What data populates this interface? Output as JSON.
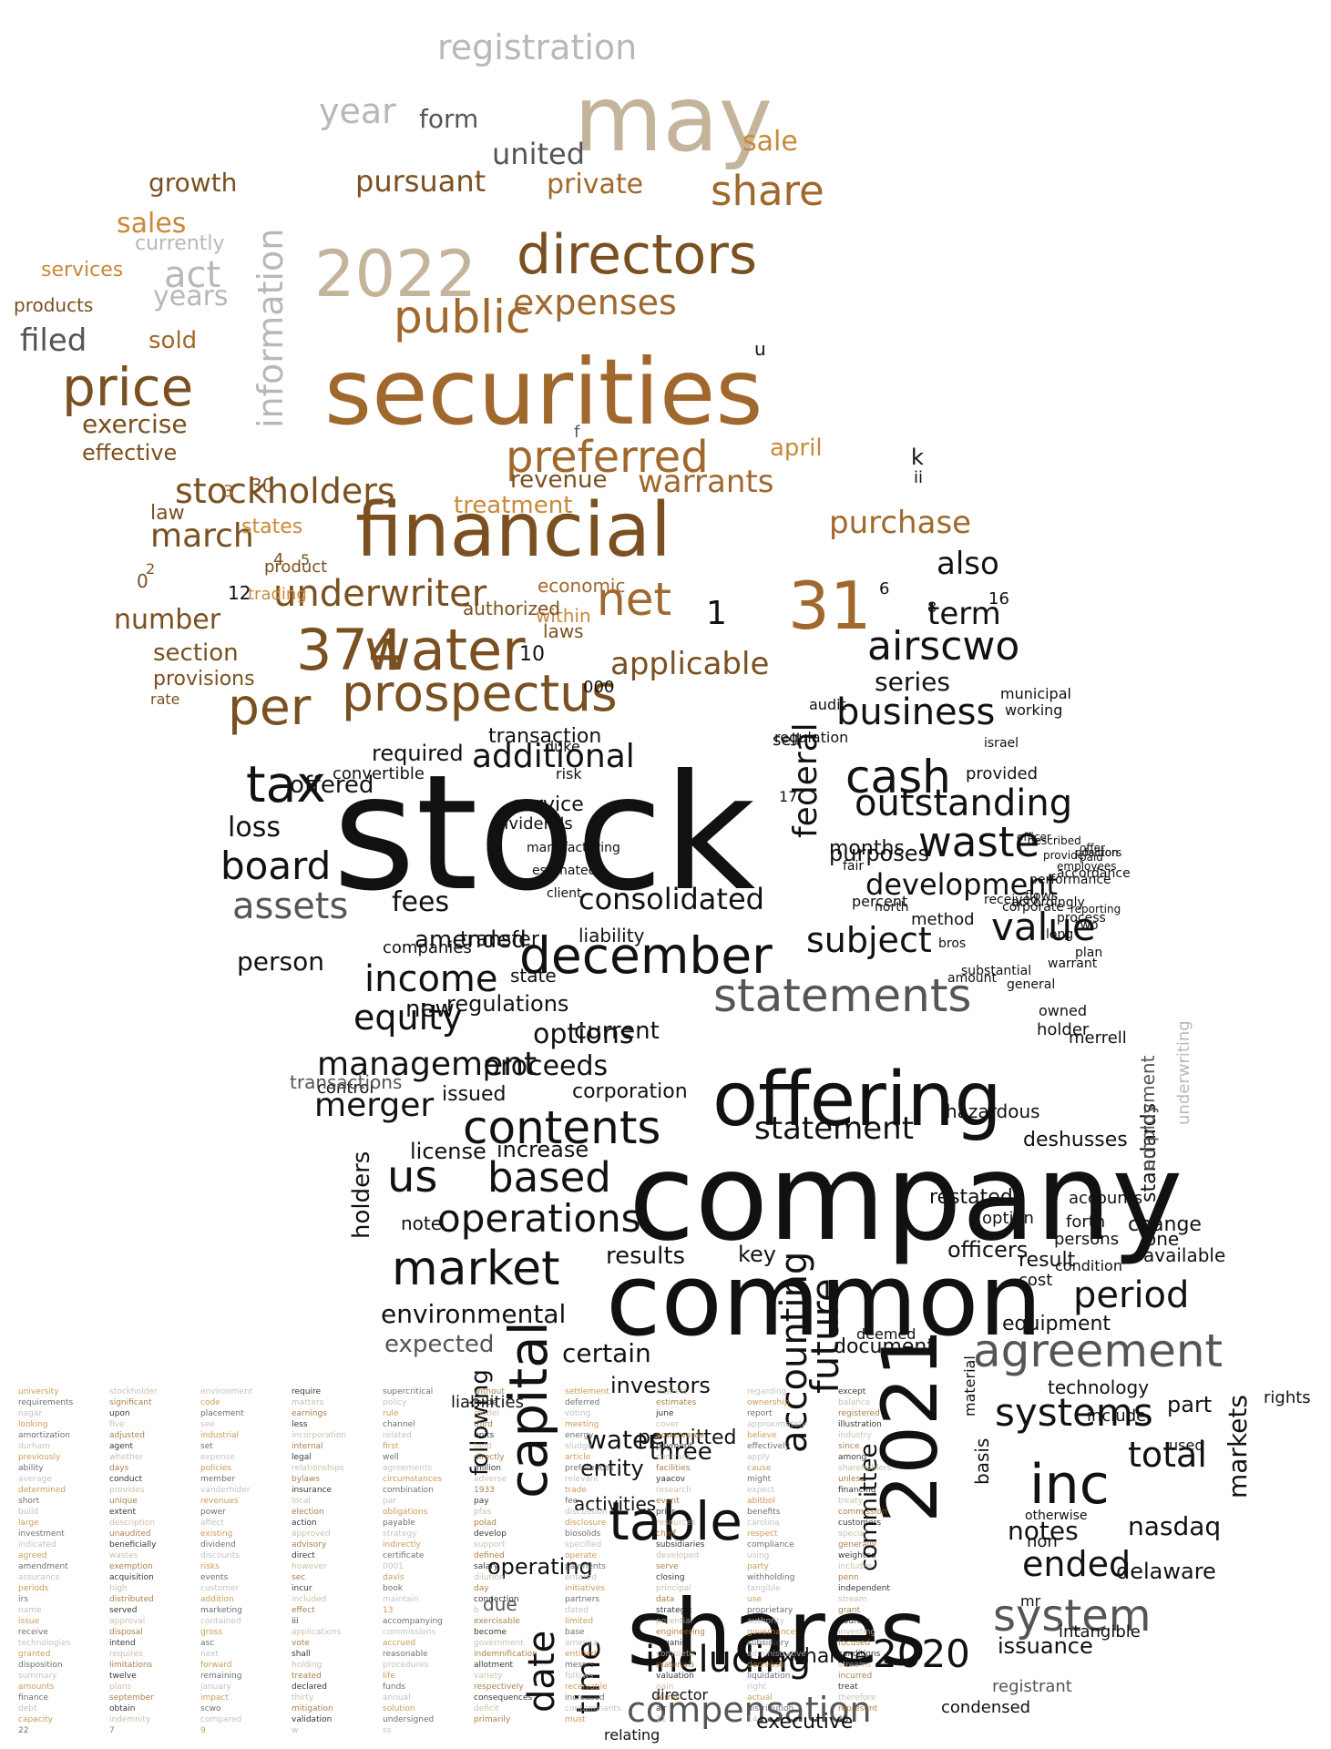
{
  "word_cloud": {
    "palette": {
      "background": "#ffffff",
      "gold": "#c8893a",
      "bronze": "#a0682c",
      "brown": "#7a5020",
      "tan": "#c4b49c",
      "grey": "#b8b8b8",
      "dark_grey": "#555555",
      "black": "#111111"
    },
    "words": [
      "stock",
      "company",
      "common",
      "shares",
      "securities",
      "financial",
      "offering",
      "may",
      "directors",
      "2022",
      "2021",
      "water",
      "374",
      "31",
      "prospectus",
      "december",
      "statements",
      "agreement",
      "public",
      "price",
      "preferred",
      "stockholders",
      "underwriter",
      "net",
      "registration",
      "share",
      "information",
      "inc",
      "capital",
      "table",
      "market",
      "contents",
      "us",
      "based",
      "operations",
      "tax",
      "board",
      "cash",
      "waste",
      "outstanding",
      "business",
      "value",
      "income",
      "equity",
      "management",
      "merger",
      "consolidated",
      "system",
      "systems",
      "accounting",
      "future",
      "including",
      "compensation",
      "2020",
      "period",
      "total",
      "ended",
      "date",
      "time",
      "subject",
      "development",
      "assets",
      "statement",
      "airscwo",
      "warrants",
      "march",
      "expenses",
      "per",
      "act",
      "years",
      "year",
      "filed",
      "sales",
      "pursuant",
      "united",
      "private",
      "sale",
      "growth",
      "form",
      "currently",
      "services",
      "products",
      "sold",
      "exercise",
      "effective",
      "law",
      "states",
      "number",
      "section",
      "provisions",
      "rate",
      "purchase",
      "revenue",
      "treatment",
      "april",
      "applicable",
      "term",
      "also",
      "series",
      "additional",
      "required",
      "offered",
      "loss",
      "federal",
      "months",
      "purposes",
      "fees",
      "amended",
      "person",
      "options",
      "current",
      "proceeds",
      "corporation",
      "issued",
      "increase",
      "license",
      "holders",
      "note",
      "results",
      "key",
      "officers",
      "equipment",
      "environmental",
      "expected",
      "certain",
      "investors",
      "liabilities",
      "water",
      "entity",
      "following",
      "activities",
      "operating",
      "due",
      "exchange",
      "director",
      "executive",
      "condensed",
      "relating",
      "registrant",
      "issuance",
      "intangible",
      "delaware",
      "part",
      "used",
      "rights",
      "markets",
      "notes",
      "nasdaq",
      "mr",
      "non",
      "otherwise",
      "document",
      "deemed",
      "permitted",
      "three",
      "committee",
      "basis",
      "material",
      "technology",
      "include",
      "cost",
      "result",
      "condition",
      "available",
      "one",
      "change",
      "persons",
      "forth",
      "accounts",
      "restated",
      "standards",
      "option",
      "holder",
      "merrell",
      "deshusses",
      "hazardous",
      "employment",
      "underwriting",
      "transfer",
      "liability",
      "companies",
      "state",
      "regulations",
      "new",
      "control",
      "transactions",
      "convertible",
      "transaction",
      "sell",
      "provided",
      "israel",
      "working",
      "municipal",
      "regulation",
      "audit",
      "laws",
      "within",
      "authorized",
      "economic",
      "trading",
      "product",
      "0",
      "30",
      "4",
      "2",
      "3",
      "5",
      "6",
      "8",
      "16",
      "12",
      "17",
      "1",
      "f",
      "u",
      "k",
      "ii",
      "10",
      "000",
      "duke",
      "risk",
      "service",
      "dividends",
      "manufacturing",
      "estimated",
      "client",
      "fair",
      "percent",
      "north",
      "method",
      "bros",
      "substantial",
      "amount",
      "owned",
      "general",
      "warrant",
      "plan",
      "long",
      "process",
      "two",
      "reporting",
      "corporate",
      "received",
      "accordingly",
      "flows",
      "performance",
      "accordance",
      "employees",
      "provide",
      "position",
      "paid",
      "factors",
      "offer",
      "described",
      "officer",
      "university",
      "stockholder",
      "environment",
      "require",
      "supercritical",
      "without",
      "settlement",
      "interest",
      "regarding",
      "except",
      "requirements",
      "significant",
      "code",
      "matters",
      "policy",
      "made",
      "deferred",
      "estimates",
      "ownership",
      "balance",
      "nagar",
      "upon",
      "placement",
      "earnings",
      "rule",
      "model",
      "voting",
      "june",
      "report",
      "registered",
      "looking",
      "five",
      "see",
      "less",
      "channel",
      "third",
      "meeting",
      "cover",
      "approximately",
      "illustration",
      "amortization",
      "adjusted",
      "industrial",
      "incorporation",
      "related",
      "units",
      "energy",
      "powerverde",
      "believe",
      "industry",
      "durham",
      "agent",
      "set",
      "internal",
      "first",
      "held",
      "sludge",
      "payment",
      "effectively",
      "since",
      "previously",
      "whether",
      "expense",
      "legal",
      "well",
      "directly",
      "article",
      "contract",
      "apply",
      "among",
      "ability",
      "days",
      "policies",
      "relationships",
      "agreements",
      "million",
      "preferences",
      "facilities",
      "cause",
      "shareholders",
      "average",
      "conduct",
      "member",
      "bylaws",
      "circumstances",
      "adverse",
      "relevant",
      "yaacov",
      "might",
      "unless",
      "determined",
      "provides",
      "vanderhider",
      "insurance",
      "combination",
      "1933",
      "trade",
      "research",
      "expect",
      "financing",
      "short",
      "unique",
      "revenues",
      "local",
      "par",
      "pay",
      "fee",
      "event",
      "abitbol",
      "treaty",
      "build",
      "extent",
      "power",
      "election",
      "obligations",
      "pfas",
      "discussion",
      "prior",
      "benefits",
      "commission",
      "large",
      "description",
      "affect",
      "action",
      "payable",
      "polad",
      "disclosure",
      "resources",
      "carolina",
      "customers",
      "investment",
      "unaudited",
      "existing",
      "approved",
      "strategy",
      "develop",
      "biosolids",
      "chief",
      "respect",
      "special",
      "indicated",
      "beneficially",
      "dividend",
      "advisory",
      "indirectly",
      "support",
      "specified",
      "subsidiaries",
      "compliance",
      "generally",
      "agreed",
      "wastes",
      "discounts",
      "direct",
      "certificate",
      "defined",
      "operate",
      "developed",
      "using",
      "weighted",
      "amendment",
      "exemption",
      "risks",
      "however",
      "0001",
      "salary",
      "payments",
      "serve",
      "party",
      "includes",
      "assurance",
      "acquisition",
      "events",
      "sec",
      "davis",
      "dilution",
      "entered",
      "closing",
      "withholding",
      "penn",
      "periods",
      "high",
      "customer",
      "incur",
      "book",
      "day",
      "initiatives",
      "principal",
      "tangible",
      "independent",
      "irs",
      "distributed",
      "addition",
      "included",
      "maintain",
      "connection",
      "partners",
      "data",
      "use",
      "stream",
      "name",
      "served",
      "marketing",
      "effect",
      "13",
      "b",
      "dated",
      "strategic",
      "proprietary",
      "grant",
      "issue",
      "approval",
      "contained",
      "iii",
      "accompanying",
      "exercisable",
      "limited",
      "potential",
      "authority",
      "address",
      "receive",
      "disposal",
      "gross",
      "applications",
      "commissions",
      "become",
      "base",
      "engineering",
      "governance",
      "investing",
      "technologies",
      "intend",
      "asc",
      "vote",
      "accrued",
      "government",
      "america",
      "organic",
      "subsidiary",
      "focused",
      "granted",
      "requires",
      "next",
      "shall",
      "reasonable",
      "indemnification",
      "entitled",
      "complete",
      "administrative",
      "conditions",
      "disposition",
      "limitations",
      "forward",
      "holding",
      "procedures",
      "allotment",
      "messrs",
      "materials",
      "decrease",
      "streams",
      "summary",
      "twelve",
      "remaining",
      "treated",
      "life",
      "variety",
      "follows",
      "valuation",
      "liquidation",
      "incurred",
      "amounts",
      "plans",
      "january",
      "declared",
      "funds",
      "respectively",
      "receivable",
      "gain",
      "right",
      "treat",
      "finance",
      "september",
      "impact",
      "thirty",
      "annual",
      "consequences",
      "increased",
      "terms",
      "actual",
      "therefore",
      "debt",
      "obtain",
      "scwo",
      "mitigation",
      "solution",
      "deficit",
      "contaminants",
      "air",
      "distribution",
      "represent",
      "capacity",
      "indemnity",
      "compared",
      "validation",
      "undersigned",
      "primarily",
      "must",
      "11",
      "14",
      "15",
      "22",
      "7",
      "9",
      "w",
      "ss"
    ]
  }
}
